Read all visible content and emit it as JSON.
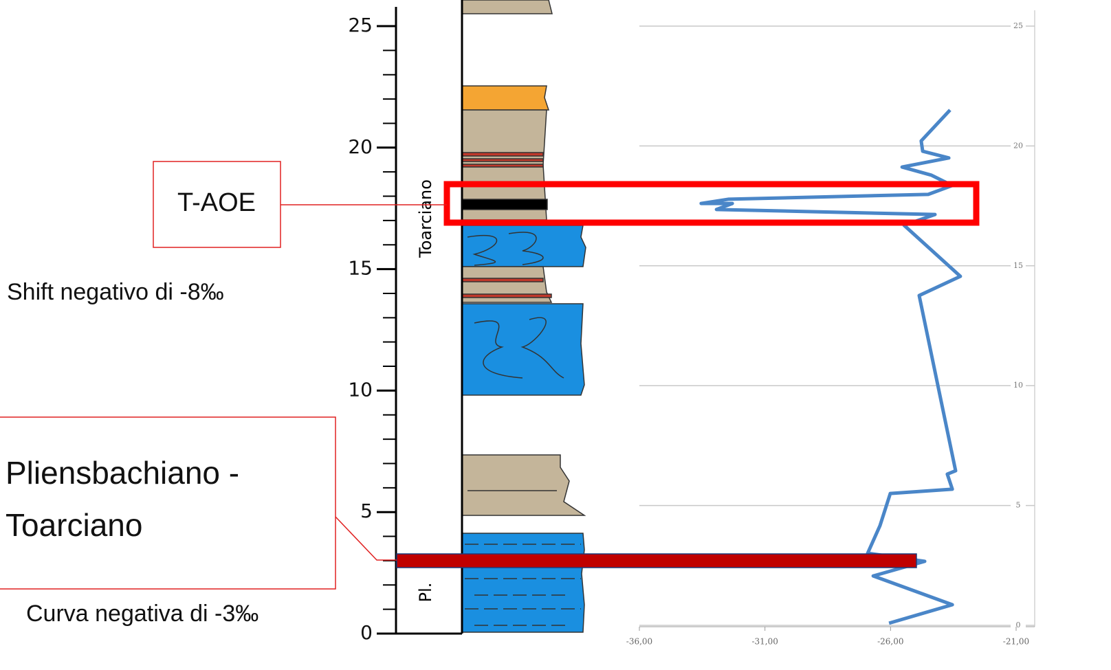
{
  "chart_data": {
    "type": "line",
    "x": [
      -26.06,
      -23.54,
      -26.69,
      -24.64,
      -26.91,
      -26.42,
      -26.01,
      -23.54,
      -23.74,
      -23.41,
      -24.86,
      -23.22,
      -25.46,
      -24.23,
      -32.93,
      -32.3,
      -33.54,
      -32.44,
      -24.5,
      -23.54,
      -24.37,
      -25.54,
      -23.68,
      -24.72,
      -24.78,
      -23.63
    ],
    "series": [
      {
        "color": "#4a86c8",
        "values": [
          0.09,
          0.86,
          2.06,
          2.67,
          3.01,
          4.16,
          5.5,
          5.68,
          6.31,
          6.45,
          13.76,
          14.56,
          16.69,
          17.14,
          17.35,
          17.6,
          17.6,
          17.78,
          17.98,
          18.35,
          18.78,
          19.12,
          19.5,
          19.78,
          20.21,
          21.5
        ]
      }
    ],
    "xlim": [
      -36,
      -21
    ],
    "xticks": [
      {
        "value": -36,
        "label": "-36,00"
      },
      {
        "value": -31,
        "label": "-31,00"
      },
      {
        "value": -26,
        "label": "-26,00"
      },
      {
        "value": -21,
        "label": "-21,00"
      }
    ],
    "ylim": [
      0,
      25
    ],
    "yticks": [
      0,
      5,
      10,
      15,
      20,
      25
    ],
    "grid": true,
    "stages": [
      "Toarciano",
      "Pl."
    ],
    "annotations": {
      "event": "T-AOE",
      "shift": "Shift negativo di -8‰",
      "boundary": [
        "Pliensbachiano -",
        "Toarciano"
      ],
      "curve": "Curva negativa di -3‰"
    }
  }
}
